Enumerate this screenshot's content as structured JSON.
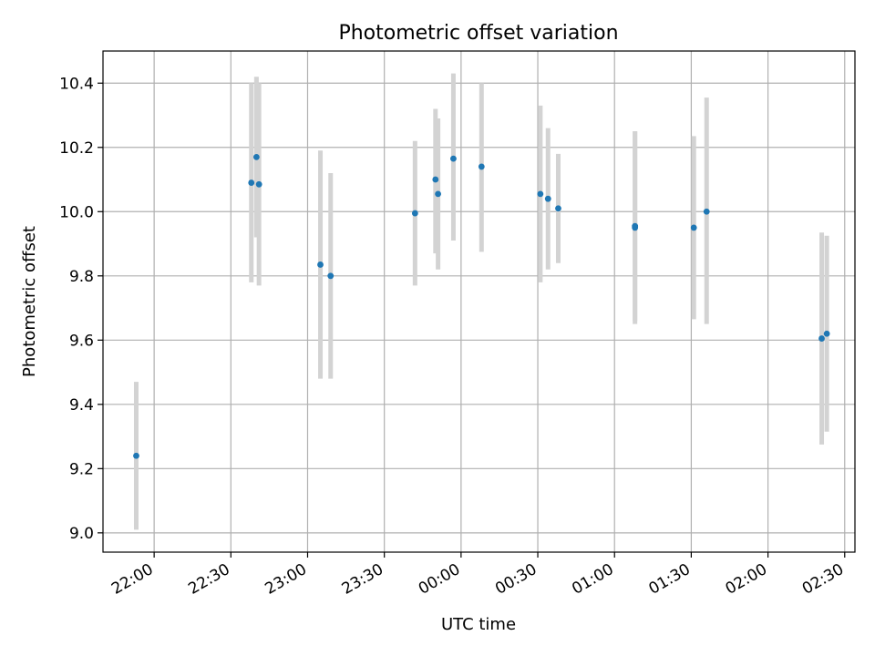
{
  "chart_data": {
    "type": "scatter",
    "title": "Photometric offset variation",
    "xlabel": "UTC time",
    "ylabel": "Photometric offset",
    "x_unit": "UTC time (hh:mm), spanning midnight",
    "xlim": [
      "21:40",
      "02:34"
    ],
    "ylim": [
      8.94,
      10.5
    ],
    "x_ticks": [
      "22:00",
      "22:30",
      "23:00",
      "23:30",
      "00:00",
      "00:30",
      "01:00",
      "01:30",
      "02:00",
      "02:30"
    ],
    "y_ticks": [
      "9.0",
      "9.2",
      "9.4",
      "9.6",
      "9.8",
      "10.0",
      "10.2",
      "10.4"
    ],
    "grid": true,
    "marker_color": "#1f77b4",
    "errorbar_color": "#d3d3d3",
    "points": [
      {
        "x": "21:53",
        "y": 9.24,
        "y_low": 9.01,
        "y_high": 9.47
      },
      {
        "x": "22:38",
        "y": 10.09,
        "y_low": 9.78,
        "y_high": 10.4
      },
      {
        "x": "22:40",
        "y": 10.17,
        "y_low": 9.92,
        "y_high": 10.42
      },
      {
        "x": "22:41",
        "y": 10.085,
        "y_low": 9.77,
        "y_high": 10.4
      },
      {
        "x": "23:05",
        "y": 9.835,
        "y_low": 9.48,
        "y_high": 10.19
      },
      {
        "x": "23:09",
        "y": 9.8,
        "y_low": 9.48,
        "y_high": 10.12
      },
      {
        "x": "23:42",
        "y": 9.995,
        "y_low": 9.77,
        "y_high": 10.22
      },
      {
        "x": "23:50",
        "y": 10.1,
        "y_low": 9.87,
        "y_high": 10.32
      },
      {
        "x": "23:51",
        "y": 10.055,
        "y_low": 9.82,
        "y_high": 10.29
      },
      {
        "x": "23:57",
        "y": 10.165,
        "y_low": 9.91,
        "y_high": 10.43
      },
      {
        "x": "00:08",
        "y": 10.14,
        "y_low": 9.875,
        "y_high": 10.4
      },
      {
        "x": "00:31",
        "y": 10.055,
        "y_low": 9.78,
        "y_high": 10.33
      },
      {
        "x": "00:34",
        "y": 10.04,
        "y_low": 9.82,
        "y_high": 10.26
      },
      {
        "x": "00:38",
        "y": 10.01,
        "y_low": 9.84,
        "y_high": 10.18
      },
      {
        "x": "01:08",
        "y": 9.95,
        "y_low": 9.65,
        "y_high": 10.25
      },
      {
        "x": "01:08",
        "y": 9.955,
        "y_low": 9.66,
        "y_high": 10.25
      },
      {
        "x": "01:31",
        "y": 9.95,
        "y_low": 9.665,
        "y_high": 10.235
      },
      {
        "x": "01:36",
        "y": 10.0,
        "y_low": 9.65,
        "y_high": 10.355
      },
      {
        "x": "02:21",
        "y": 9.605,
        "y_low": 9.275,
        "y_high": 9.935
      },
      {
        "x": "02:23",
        "y": 9.62,
        "y_low": 9.315,
        "y_high": 9.925
      }
    ]
  }
}
